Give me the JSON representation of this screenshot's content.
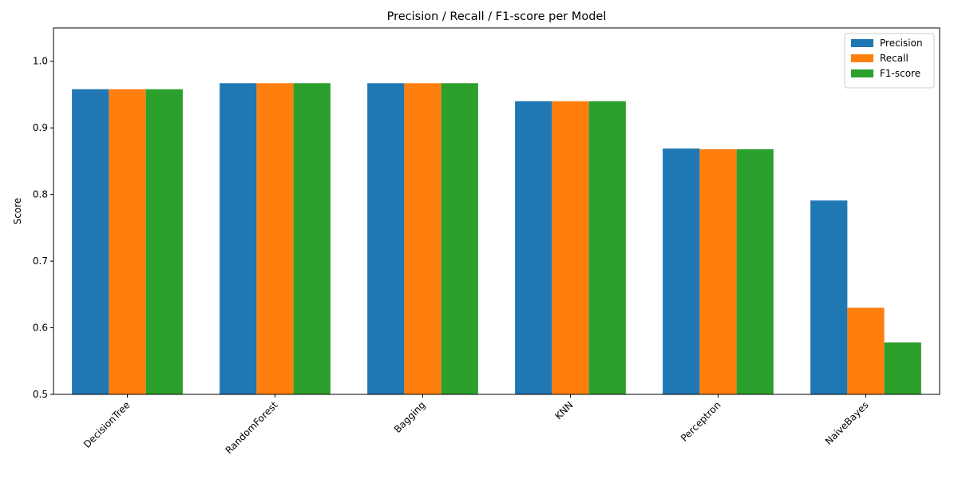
{
  "chart_data": {
    "type": "bar",
    "title": "Precision / Recall / F1-score per Model",
    "xlabel": "",
    "ylabel": "Score",
    "ylim": [
      0.5,
      1.05
    ],
    "yticks": [
      "0.5",
      "0.6",
      "0.7",
      "0.8",
      "0.9",
      "1.0"
    ],
    "categories": [
      "DecisionTree",
      "RandomForest",
      "Bagging",
      "KNN",
      "Perceptron",
      "NaiveBayes"
    ],
    "series": [
      {
        "name": "Precision",
        "color": "#1f77b4",
        "values": [
          0.958,
          0.967,
          0.967,
          0.94,
          0.869,
          0.791
        ]
      },
      {
        "name": "Recall",
        "color": "#ff7f0e",
        "values": [
          0.958,
          0.967,
          0.967,
          0.94,
          0.868,
          0.63
        ]
      },
      {
        "name": "F1-score",
        "color": "#2ca02c",
        "values": [
          0.958,
          0.967,
          0.967,
          0.94,
          0.868,
          0.578
        ]
      }
    ],
    "grid": false,
    "legend_position": "top-right"
  }
}
